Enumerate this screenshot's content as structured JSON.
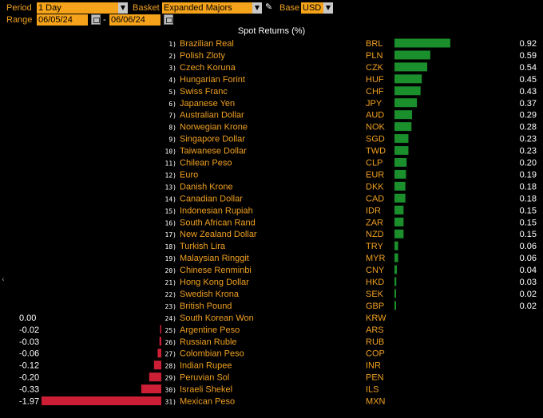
{
  "controls": {
    "period_label": "Period",
    "period_value": "1 Day",
    "basket_label": "Basket",
    "basket_value": "Expanded Majors",
    "base_label": "Base",
    "base_value": "USD",
    "range_label": "Range",
    "range_start": "06/05/24",
    "range_separator": "-",
    "range_end": "06/06/24"
  },
  "colors": {
    "positive": "#1a8f2c",
    "negative": "#cc1f36",
    "accent": "#f0a020",
    "field": "#f5a31a"
  },
  "icons": {
    "dropdown": "chevron-down-icon",
    "edit": "pencil-icon",
    "calendar": "calendar-icon"
  },
  "chart_data": {
    "type": "bar",
    "title": "Spot Returns (%)",
    "rows": [
      {
        "rank": "1)",
        "name": "Brazilian Real",
        "code": "BRL",
        "value": 0.92,
        "label": "0.92"
      },
      {
        "rank": "2)",
        "name": "Polish Zloty",
        "code": "PLN",
        "value": 0.59,
        "label": "0.59"
      },
      {
        "rank": "3)",
        "name": "Czech Koruna",
        "code": "CZK",
        "value": 0.54,
        "label": "0.54"
      },
      {
        "rank": "4)",
        "name": "Hungarian Forint",
        "code": "HUF",
        "value": 0.45,
        "label": "0.45"
      },
      {
        "rank": "5)",
        "name": "Swiss Franc",
        "code": "CHF",
        "value": 0.43,
        "label": "0.43"
      },
      {
        "rank": "6)",
        "name": "Japanese Yen",
        "code": "JPY",
        "value": 0.37,
        "label": "0.37"
      },
      {
        "rank": "7)",
        "name": "Australian Dollar",
        "code": "AUD",
        "value": 0.29,
        "label": "0.29"
      },
      {
        "rank": "8)",
        "name": "Norwegian Krone",
        "code": "NOK",
        "value": 0.28,
        "label": "0.28"
      },
      {
        "rank": "9)",
        "name": "Singapore Dollar",
        "code": "SGD",
        "value": 0.23,
        "label": "0.23"
      },
      {
        "rank": "10)",
        "name": "Taiwanese Dollar",
        "code": "TWD",
        "value": 0.23,
        "label": "0.23"
      },
      {
        "rank": "11)",
        "name": "Chilean Peso",
        "code": "CLP",
        "value": 0.2,
        "label": "0.20"
      },
      {
        "rank": "12)",
        "name": "Euro",
        "code": "EUR",
        "value": 0.19,
        "label": "0.19"
      },
      {
        "rank": "13)",
        "name": "Danish Krone",
        "code": "DKK",
        "value": 0.18,
        "label": "0.18"
      },
      {
        "rank": "14)",
        "name": "Canadian Dollar",
        "code": "CAD",
        "value": 0.18,
        "label": "0.18"
      },
      {
        "rank": "15)",
        "name": "Indonesian Rupiah",
        "code": "IDR",
        "value": 0.15,
        "label": "0.15"
      },
      {
        "rank": "16)",
        "name": "South African Rand",
        "code": "ZAR",
        "value": 0.15,
        "label": "0.15"
      },
      {
        "rank": "17)",
        "name": "New Zealand Dollar",
        "code": "NZD",
        "value": 0.15,
        "label": "0.15"
      },
      {
        "rank": "18)",
        "name": "Turkish Lira",
        "code": "TRY",
        "value": 0.06,
        "label": "0.06"
      },
      {
        "rank": "19)",
        "name": "Malaysian Ringgit",
        "code": "MYR",
        "value": 0.06,
        "label": "0.06"
      },
      {
        "rank": "20)",
        "name": "Chinese Renminbi",
        "code": "CNY",
        "value": 0.04,
        "label": "0.04"
      },
      {
        "rank": "21)",
        "name": "Hong Kong Dollar",
        "code": "HKD",
        "value": 0.03,
        "label": "0.03"
      },
      {
        "rank": "22)",
        "name": "Swedish Krona",
        "code": "SEK",
        "value": 0.02,
        "label": "0.02"
      },
      {
        "rank": "23)",
        "name": "British Pound",
        "code": "GBP",
        "value": 0.02,
        "label": "0.02"
      },
      {
        "rank": "24)",
        "name": "South Korean Won",
        "code": "KRW",
        "value": 0.0,
        "label": "0.00"
      },
      {
        "rank": "25)",
        "name": "Argentine Peso",
        "code": "ARS",
        "value": -0.02,
        "label": "-0.02"
      },
      {
        "rank": "26)",
        "name": "Russian Ruble",
        "code": "RUB",
        "value": -0.03,
        "label": "-0.03"
      },
      {
        "rank": "27)",
        "name": "Colombian Peso",
        "code": "COP",
        "value": -0.06,
        "label": "-0.06"
      },
      {
        "rank": "28)",
        "name": "Indian Rupee",
        "code": "INR",
        "value": -0.12,
        "label": "-0.12"
      },
      {
        "rank": "29)",
        "name": "Peruvian Sol",
        "code": "PEN",
        "value": -0.2,
        "label": "-0.20"
      },
      {
        "rank": "30)",
        "name": "Israeli Shekel",
        "code": "ILS",
        "value": -0.33,
        "label": "-0.33"
      },
      {
        "rank": "31)",
        "name": "Mexican Peso",
        "code": "MXN",
        "value": -1.97,
        "label": "-1.97"
      }
    ]
  }
}
